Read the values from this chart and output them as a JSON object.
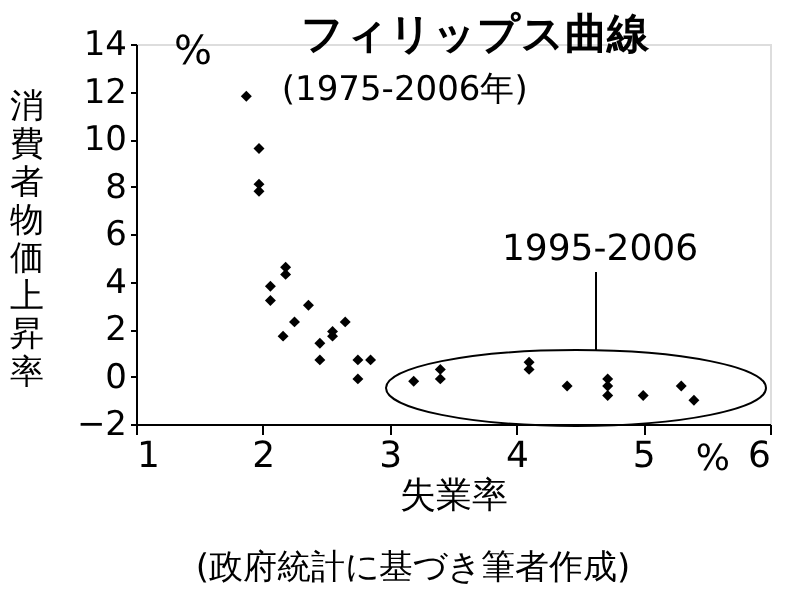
{
  "chart_data": {
    "type": "scatter",
    "title": "フィリップス曲線",
    "subtitle": "(1975-2006年)",
    "xlabel": "失業率",
    "ylabel": "消費者物価上昇率",
    "x": [
      1.87,
      1.97,
      1.97,
      1.97,
      2.18,
      2.18,
      2.06,
      2.06,
      2.36,
      2.25,
      2.16,
      2.45,
      2.45,
      2.55,
      2.55,
      2.65,
      2.75,
      2.75,
      2.85,
      3.19,
      3.4,
      3.4,
      4.1,
      4.1,
      4.4,
      4.72,
      4.72,
      4.72,
      5.0,
      5.3,
      5.4
    ],
    "series": [
      {
        "color": "#000000",
        "values": [
          11.8,
          9.6,
          8.1,
          7.8,
          4.6,
          4.3,
          3.8,
          3.2,
          3.0,
          2.3,
          1.7,
          1.4,
          0.7,
          1.9,
          1.7,
          2.3,
          0.7,
          -0.1,
          0.7,
          -0.2,
          0.3,
          -0.1,
          0.6,
          0.3,
          -0.4,
          -0.1,
          -0.4,
          -0.8,
          -0.8,
          -0.4,
          -1.0
        ]
      }
    ],
    "xlim": [
      1,
      6
    ],
    "xticks": [
      1,
      2,
      3,
      4,
      5,
      6
    ],
    "ylim": [
      -2,
      14
    ],
    "yticks": [
      -2,
      0,
      2,
      4,
      6,
      8,
      10,
      12,
      14
    ],
    "annotations": [
      "1995-2006",
      "%",
      "%",
      "(政府統計に基づき筆者作成)"
    ],
    "grid": false,
    "marker": "diamond"
  }
}
